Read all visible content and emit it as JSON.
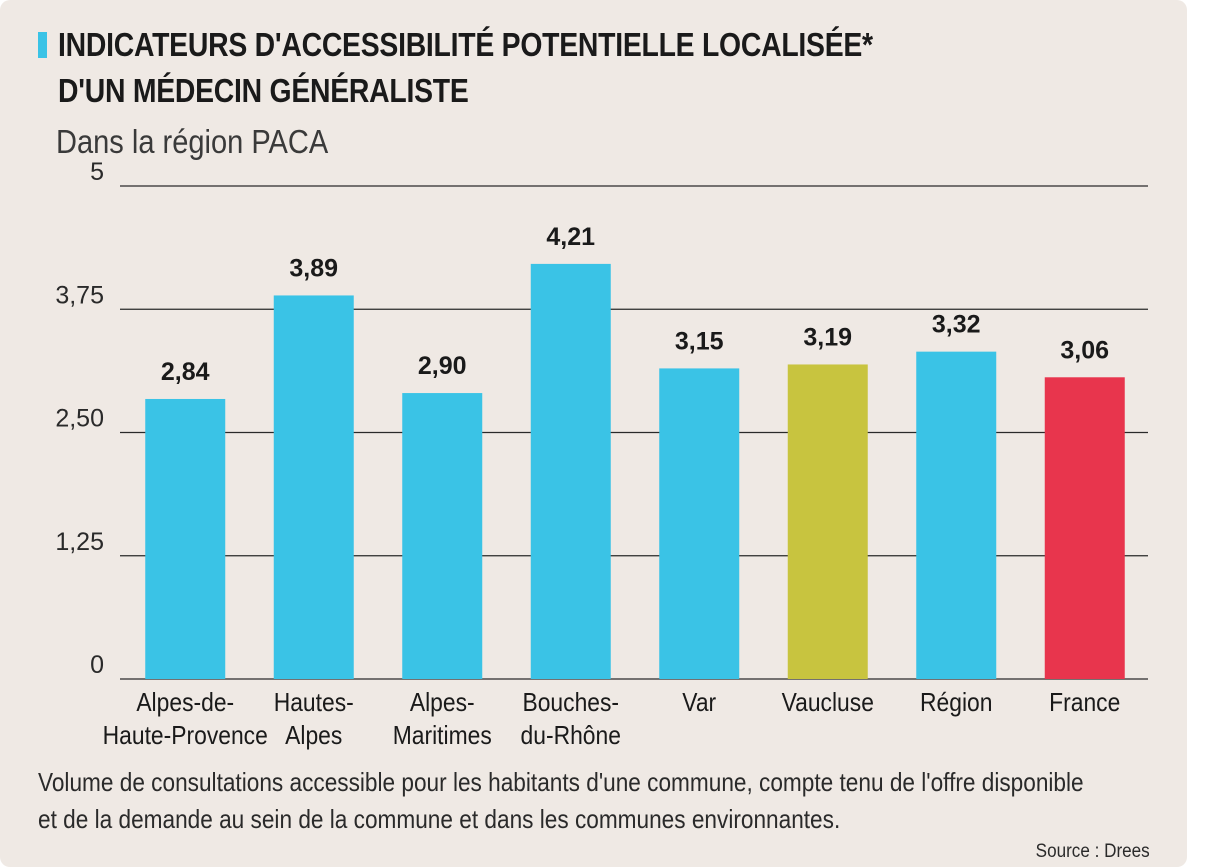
{
  "header": {
    "title_line1": "INDICATEURS D'ACCESSIBILITÉ POTENTIELLE LOCALISÉE*",
    "title_line2": "D'UN MÉDECIN GÉNÉRALISTE",
    "subtitle": "Dans la région PACA",
    "accent_color": "#3ac3e6"
  },
  "chart_data": {
    "type": "bar",
    "title": "INDICATEURS D'ACCESSIBILITÉ POTENTIELLE LOCALISÉE* D'UN MÉDECIN GÉNÉRALISTE",
    "subtitle": "Dans la région PACA",
    "xlabel": "",
    "ylabel": "",
    "ylim": [
      0,
      5
    ],
    "yticks": [
      0,
      1.25,
      2.5,
      3.75,
      5
    ],
    "ytick_labels": [
      "0",
      "1,25",
      "2,50",
      "3,75",
      "5"
    ],
    "grid": true,
    "categories": [
      [
        "Alpes-de-",
        "Haute-Provence"
      ],
      [
        "Hautes-",
        "Alpes"
      ],
      [
        "Alpes-",
        "Maritimes"
      ],
      [
        "Bouches-",
        "du-Rhône"
      ],
      [
        "Var"
      ],
      [
        "Vaucluse"
      ],
      [
        "Région"
      ],
      [
        "France"
      ]
    ],
    "values": [
      2.84,
      3.89,
      2.9,
      4.21,
      3.15,
      3.19,
      3.32,
      3.06
    ],
    "value_labels": [
      "2,84",
      "3,89",
      "2,90",
      "4,21",
      "3,15",
      "3,19",
      "3,32",
      "3,06"
    ],
    "colors": [
      "#3ac3e6",
      "#3ac3e6",
      "#3ac3e6",
      "#3ac3e6",
      "#3ac3e6",
      "#c8c43f",
      "#3ac3e6",
      "#e8354d"
    ]
  },
  "footer": {
    "note": "Volume de consultations accessible pour les habitants d'une commune, compte tenu de l'offre disponible et de la demande au sein de la commune et dans les communes environnantes.",
    "source": "Source : Drees"
  }
}
